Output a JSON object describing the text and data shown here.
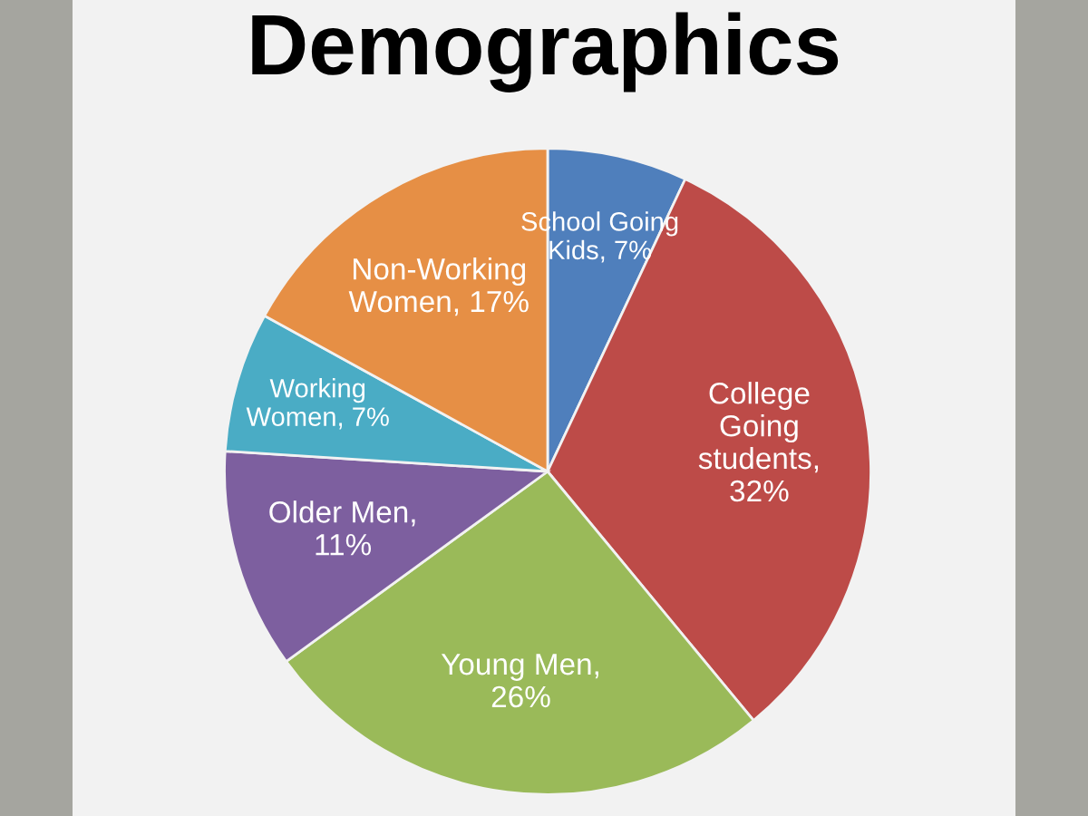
{
  "chart_data": {
    "type": "pie",
    "title": "Demographics",
    "categories": [
      "School Going Kids, 7%",
      "College Going students, 32%",
      "Young Men, 26%",
      "Older Men, 11%",
      "Working Women, 7%",
      "Non-Working Women, 17%"
    ],
    "values": [
      7,
      32,
      26,
      11,
      7,
      17
    ],
    "colors": [
      "#4f7fbc",
      "#bd4b48",
      "#9aba59",
      "#7d5f9f",
      "#4aacc5",
      "#e68f45"
    ],
    "legend": false
  }
}
